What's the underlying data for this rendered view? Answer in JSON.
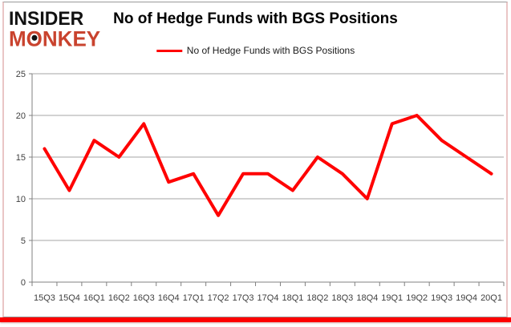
{
  "logo": {
    "line1": "INSIDER",
    "monkey_pre": "M",
    "monkey_o": "O",
    "monkey_post": "NKEY"
  },
  "title": "No of Hedge Funds with BGS Positions",
  "legend": {
    "label": "No of Hedge Funds with BGS Positions",
    "line_color": "#ff0000"
  },
  "chart_data": {
    "type": "line",
    "title": "No of Hedge Funds with BGS Positions",
    "categories": [
      "15Q3",
      "15Q4",
      "16Q1",
      "16Q2",
      "16Q3",
      "16Q4",
      "17Q1",
      "17Q2",
      "17Q3",
      "17Q4",
      "18Q1",
      "18Q2",
      "18Q3",
      "18Q4",
      "19Q1",
      "19Q2",
      "19Q3",
      "19Q4",
      "20Q1"
    ],
    "series": [
      {
        "name": "No of Hedge Funds with BGS Positions",
        "color": "#ff0000",
        "values": [
          16,
          11,
          17,
          15,
          19,
          12,
          13,
          8,
          13,
          13,
          11,
          15,
          13,
          10,
          19,
          20,
          17,
          15,
          13
        ]
      }
    ],
    "xlabel": "",
    "ylabel": "",
    "ylim": [
      0,
      25
    ],
    "yticks": [
      0,
      5,
      10,
      15,
      20,
      25
    ],
    "grid": true,
    "legend_position": "top"
  },
  "colors": {
    "series_red": "#ff0000",
    "logo_red": "#c9432e",
    "logo_black": "#121212",
    "gridline": "#a6a6a6",
    "axis": "#808080",
    "tick_text": "#3f3f3f",
    "border_pink": "#eac6c6",
    "border_gray": "#9a9a9a",
    "bottom_bar_red": "#fe0000"
  }
}
